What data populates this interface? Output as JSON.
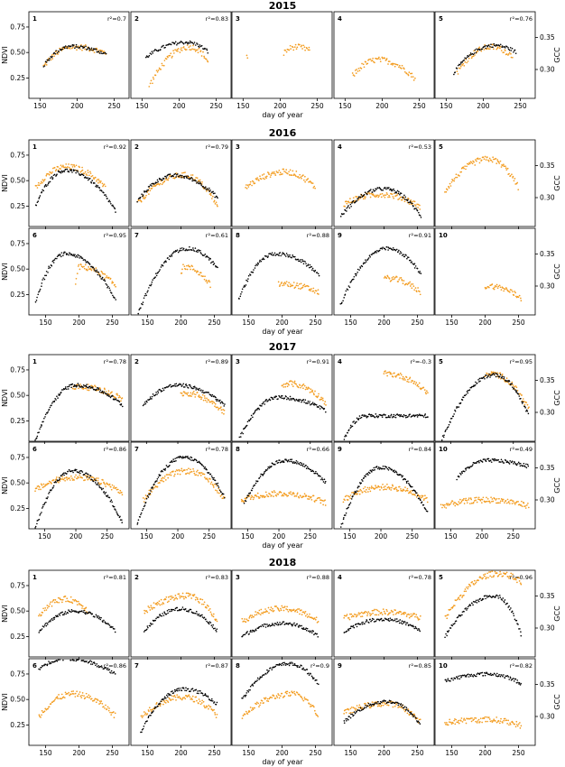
{
  "figure": {
    "ylabel_left": "NDVI",
    "ylabel_right": "GCC",
    "xlabel": "day of year",
    "colors": {
      "ndvi": "#000000",
      "gcc": "#f39c1f",
      "axis": "#000000"
    },
    "r2_prefix": "r²="
  },
  "chart_data": {
    "type": "scatter",
    "x_ticks": [
      150,
      200,
      250
    ],
    "ndvi_ticks": [
      0.25,
      0.5,
      0.75
    ],
    "gcc_ticks": [
      0.3,
      0.35
    ],
    "blocks": [
      {
        "year": "2015",
        "xlim": [
          135,
          270
        ],
        "panels": [
          {
            "n": "1",
            "r2": "0.7",
            "ndvi": {
              "s": 155,
              "e": 240,
              "p": 192,
              "b0": 0.37,
              "pk": 0.56,
              "b1": 0.48
            },
            "gcc": {
              "s": 155,
              "e": 240,
              "p": 195,
              "b0": 0.305,
              "pk": 0.335,
              "b1": 0.325
            }
          },
          {
            "n": "2",
            "r2": "0.83",
            "ndvi": {
              "s": 155,
              "e": 240,
              "p": 210,
              "b0": 0.45,
              "pk": 0.6,
              "b1": 0.5
            },
            "gcc": {
              "s": 160,
              "e": 240,
              "p": 215,
              "b0": 0.275,
              "pk": 0.335,
              "b1": 0.31
            }
          },
          {
            "n": "3",
            "r2": "",
            "ndvi": null,
            "gcc": {
              "s": 205,
              "e": 240,
              "p": 220,
              "b0": 0.325,
              "pk": 0.335,
              "b1": 0.33,
              "extra": [
                [
                  155,
                  0.322
                ],
                [
                  156,
                  0.318
                ]
              ]
            }
          },
          {
            "n": "4",
            "r2": "",
            "ndvi": null,
            "gcc": {
              "s": 160,
              "e": 245,
              "p": 195,
              "b0": 0.29,
              "pk": 0.315,
              "b1": 0.285
            }
          },
          {
            "n": "5",
            "r2": "0.76",
            "ndvi": {
              "s": 160,
              "e": 245,
              "p": 215,
              "b0": 0.3,
              "pk": 0.57,
              "b1": 0.5
            },
            "gcc": {
              "s": 165,
              "e": 240,
              "p": 210,
              "b0": 0.295,
              "pk": 0.335,
              "b1": 0.32
            }
          }
        ]
      },
      {
        "year": "2016",
        "xlim": [
          125,
          275
        ],
        "panels": [
          {
            "n": "1",
            "r2": "0.92",
            "ndvi": {
              "s": 135,
              "e": 255,
              "p": 180,
              "b0": 0.25,
              "pk": 0.6,
              "b1": 0.2
            },
            "gcc": {
              "s": 135,
              "e": 240,
              "p": 182,
              "b0": 0.315,
              "pk": 0.348,
              "b1": 0.315
            }
          },
          {
            "n": "2",
            "r2": "0.79",
            "ndvi": {
              "s": 135,
              "e": 255,
              "p": 190,
              "b0": 0.3,
              "pk": 0.55,
              "b1": 0.33
            },
            "gcc": {
              "s": 135,
              "e": 255,
              "p": 205,
              "b0": 0.29,
              "pk": 0.335,
              "b1": 0.285
            }
          },
          {
            "n": "3",
            "r2": "",
            "ndvi": null,
            "gcc": {
              "s": 145,
              "e": 250,
              "p": 205,
              "b0": 0.315,
              "pk": 0.34,
              "b1": 0.315
            }
          },
          {
            "n": "4",
            "r2": "0.53",
            "ndvi": {
              "s": 135,
              "e": 255,
              "p": 200,
              "b0": 0.15,
              "pk": 0.42,
              "b1": 0.15
            },
            "gcc": {
              "s": 140,
              "e": 255,
              "p": 195,
              "b0": 0.29,
              "pk": 0.305,
              "b1": 0.285
            }
          },
          {
            "n": "5",
            "r2": "",
            "ndvi": null,
            "gcc": {
              "s": 140,
              "e": 250,
              "p": 205,
              "b0": 0.31,
              "pk": 0.36,
              "b1": 0.315
            }
          },
          {
            "n": "6",
            "r2": "0.95",
            "ndvi": {
              "s": 135,
              "e": 255,
              "p": 180,
              "b0": 0.18,
              "pk": 0.65,
              "b1": 0.2
            },
            "gcc": {
              "s": 195,
              "e": 255,
              "p": 200,
              "b0": 0.3,
              "pk": 0.33,
              "b1": 0.3
            }
          },
          {
            "n": "7",
            "r2": "0.61",
            "ndvi": {
              "s": 135,
              "e": 255,
              "p": 210,
              "b0": 0.05,
              "pk": 0.7,
              "b1": 0.5
            },
            "gcc": {
              "s": 200,
              "e": 245,
              "p": 205,
              "b0": 0.32,
              "pk": 0.33,
              "b1": 0.3
            }
          },
          {
            "n": "8",
            "r2": "0.88",
            "ndvi": {
              "s": 135,
              "e": 255,
              "p": 190,
              "b0": 0.2,
              "pk": 0.65,
              "b1": 0.45
            },
            "gcc": {
              "s": 195,
              "e": 255,
              "p": 200,
              "b0": 0.303,
              "pk": 0.303,
              "b1": 0.29
            }
          },
          {
            "n": "9",
            "r2": "0.91",
            "ndvi": {
              "s": 135,
              "e": 255,
              "p": 205,
              "b0": 0.15,
              "pk": 0.7,
              "b1": 0.45
            },
            "gcc": {
              "s": 200,
              "e": 255,
              "p": 205,
              "b0": 0.312,
              "pk": 0.312,
              "b1": 0.29
            }
          },
          {
            "n": "10",
            "r2": "",
            "ndvi": null,
            "gcc": {
              "s": 200,
              "e": 255,
              "p": 205,
              "b0": 0.3,
              "pk": 0.3,
              "b1": 0.28
            }
          }
        ]
      },
      {
        "year": "2017",
        "xlim": [
          125,
          285
        ],
        "panels": [
          {
            "n": "1",
            "r2": "0.78",
            "ndvi": {
              "s": 135,
              "e": 275,
              "p": 200,
              "b0": 0.05,
              "pk": 0.6,
              "b1": 0.4
            },
            "gcc": {
              "s": 195,
              "e": 275,
              "p": 205,
              "b0": 0.34,
              "pk": 0.34,
              "b1": 0.32
            }
          },
          {
            "n": "2",
            "r2": "0.89",
            "ndvi": {
              "s": 145,
              "e": 275,
              "p": 200,
              "b0": 0.4,
              "pk": 0.6,
              "b1": 0.4
            },
            "gcc": {
              "s": 205,
              "e": 275,
              "p": 210,
              "b0": 0.33,
              "pk": 0.33,
              "b1": 0.3
            }
          },
          {
            "n": "3",
            "r2": "0.91",
            "ndvi": {
              "s": 135,
              "e": 275,
              "p": 200,
              "b0": 0.05,
              "pk": 0.48,
              "b1": 0.35
            },
            "gcc": {
              "s": 205,
              "e": 275,
              "p": 215,
              "b0": 0.34,
              "pk": 0.345,
              "b1": 0.315
            }
          },
          {
            "n": "4",
            "r2": "-0.3",
            "ndvi": {
              "s": 140,
              "e": 275,
              "p": 175,
              "b0": 0.05,
              "pk": 0.3,
              "b1": 0.3
            },
            "gcc": {
              "s": 205,
              "e": 275,
              "p": 210,
              "b0": 0.36,
              "pk": 0.36,
              "b1": 0.33
            }
          },
          {
            "n": "5",
            "r2": "0.95",
            "ndvi": {
              "s": 135,
              "e": 275,
              "p": 220,
              "b0": 0.05,
              "pk": 0.7,
              "b1": 0.3
            },
            "gcc": {
              "s": 205,
              "e": 275,
              "p": 215,
              "b0": 0.355,
              "pk": 0.36,
              "b1": 0.305
            }
          },
          {
            "n": "6",
            "r2": "0.86",
            "ndvi": {
              "s": 135,
              "e": 275,
              "p": 195,
              "b0": 0.05,
              "pk": 0.62,
              "b1": 0.1
            },
            "gcc": {
              "s": 135,
              "e": 275,
              "p": 200,
              "b0": 0.315,
              "pk": 0.335,
              "b1": 0.31
            }
          },
          {
            "n": "7",
            "r2": "0.78",
            "ndvi": {
              "s": 135,
              "e": 275,
              "p": 210,
              "b0": 0.1,
              "pk": 0.75,
              "b1": 0.35
            },
            "gcc": {
              "s": 145,
              "e": 275,
              "p": 215,
              "b0": 0.3,
              "pk": 0.345,
              "b1": 0.3
            }
          },
          {
            "n": "8",
            "r2": "0.66",
            "ndvi": {
              "s": 145,
              "e": 275,
              "p": 210,
              "b0": 0.3,
              "pk": 0.72,
              "b1": 0.5
            },
            "gcc": {
              "s": 140,
              "e": 275,
              "p": 205,
              "b0": 0.3,
              "pk": 0.31,
              "b1": 0.295
            }
          },
          {
            "n": "9",
            "r2": "0.84",
            "ndvi": {
              "s": 135,
              "e": 275,
              "p": 200,
              "b0": 0.05,
              "pk": 0.65,
              "b1": 0.2
            },
            "gcc": {
              "s": 140,
              "e": 275,
              "p": 205,
              "b0": 0.3,
              "pk": 0.32,
              "b1": 0.3
            }
          },
          {
            "n": "10",
            "r2": "0.49",
            "ndvi": {
              "s": 160,
              "e": 275,
              "p": 210,
              "b0": 0.55,
              "pk": 0.72,
              "b1": 0.66
            },
            "gcc": {
              "s": 135,
              "e": 275,
              "p": 210,
              "b0": 0.29,
              "pk": 0.3,
              "b1": 0.29
            }
          }
        ]
      },
      {
        "year": "2018",
        "xlim": [
          125,
          275
        ],
        "panels": [
          {
            "n": "1",
            "r2": "0.81",
            "ndvi": {
              "s": 140,
              "e": 255,
              "p": 195,
              "b0": 0.3,
              "pk": 0.5,
              "b1": 0.3
            },
            "gcc": {
              "s": 140,
              "e": 215,
              "p": 180,
              "b0": 0.32,
              "pk": 0.345,
              "b1": 0.325
            }
          },
          {
            "n": "2",
            "r2": "0.83",
            "ndvi": {
              "s": 145,
              "e": 255,
              "p": 200,
              "b0": 0.3,
              "pk": 0.52,
              "b1": 0.3
            },
            "gcc": {
              "s": 145,
              "e": 255,
              "p": 210,
              "b0": 0.325,
              "pk": 0.35,
              "b1": 0.31
            }
          },
          {
            "n": "3",
            "r2": "0.88",
            "ndvi": {
              "s": 140,
              "e": 255,
              "p": 200,
              "b0": 0.25,
              "pk": 0.38,
              "b1": 0.25
            },
            "gcc": {
              "s": 140,
              "e": 255,
              "p": 200,
              "b0": 0.31,
              "pk": 0.33,
              "b1": 0.31
            }
          },
          {
            "n": "4",
            "r2": "0.78",
            "ndvi": {
              "s": 140,
              "e": 255,
              "p": 200,
              "b0": 0.3,
              "pk": 0.42,
              "b1": 0.3
            },
            "gcc": {
              "s": 140,
              "e": 255,
              "p": 200,
              "b0": 0.315,
              "pk": 0.325,
              "b1": 0.315
            }
          },
          {
            "n": "5",
            "r2": "0.96",
            "ndvi": {
              "s": 140,
              "e": 255,
              "p": 215,
              "b0": 0.25,
              "pk": 0.65,
              "b1": 0.25
            },
            "gcc": {
              "s": 140,
              "e": 255,
              "p": 220,
              "b0": 0.315,
              "pk": 0.385,
              "b1": 0.37
            }
          },
          {
            "n": "6",
            "r2": "0.86",
            "ndvi": {
              "s": 140,
              "e": 255,
              "p": 180,
              "b0": 0.8,
              "pk": 0.9,
              "b1": 0.75
            },
            "gcc": {
              "s": 140,
              "e": 255,
              "p": 190,
              "b0": 0.3,
              "pk": 0.335,
              "b1": 0.3
            }
          },
          {
            "n": "7",
            "r2": "0.87",
            "ndvi": {
              "s": 140,
              "e": 255,
              "p": 205,
              "b0": 0.18,
              "pk": 0.6,
              "b1": 0.45
            },
            "gcc": {
              "s": 140,
              "e": 255,
              "p": 205,
              "b0": 0.3,
              "pk": 0.33,
              "b1": 0.3
            }
          },
          {
            "n": "8",
            "r2": "0.9",
            "ndvi": {
              "s": 140,
              "e": 255,
              "p": 210,
              "b0": 0.5,
              "pk": 0.85,
              "b1": 0.65
            },
            "gcc": {
              "s": 140,
              "e": 255,
              "p": 215,
              "b0": 0.3,
              "pk": 0.335,
              "b1": 0.3
            }
          },
          {
            "n": "9",
            "r2": "0.85",
            "ndvi": {
              "s": 140,
              "e": 255,
              "p": 205,
              "b0": 0.28,
              "pk": 0.48,
              "b1": 0.25
            },
            "gcc": {
              "s": 140,
              "e": 255,
              "p": 205,
              "b0": 0.305,
              "pk": 0.32,
              "b1": 0.29
            }
          },
          {
            "n": "10",
            "r2": "0.82",
            "ndvi": {
              "s": 140,
              "e": 255,
              "p": 205,
              "b0": 0.68,
              "pk": 0.75,
              "b1": 0.65
            },
            "gcc": {
              "s": 140,
              "e": 255,
              "p": 205,
              "b0": 0.29,
              "pk": 0.295,
              "b1": 0.285
            }
          }
        ]
      }
    ]
  }
}
